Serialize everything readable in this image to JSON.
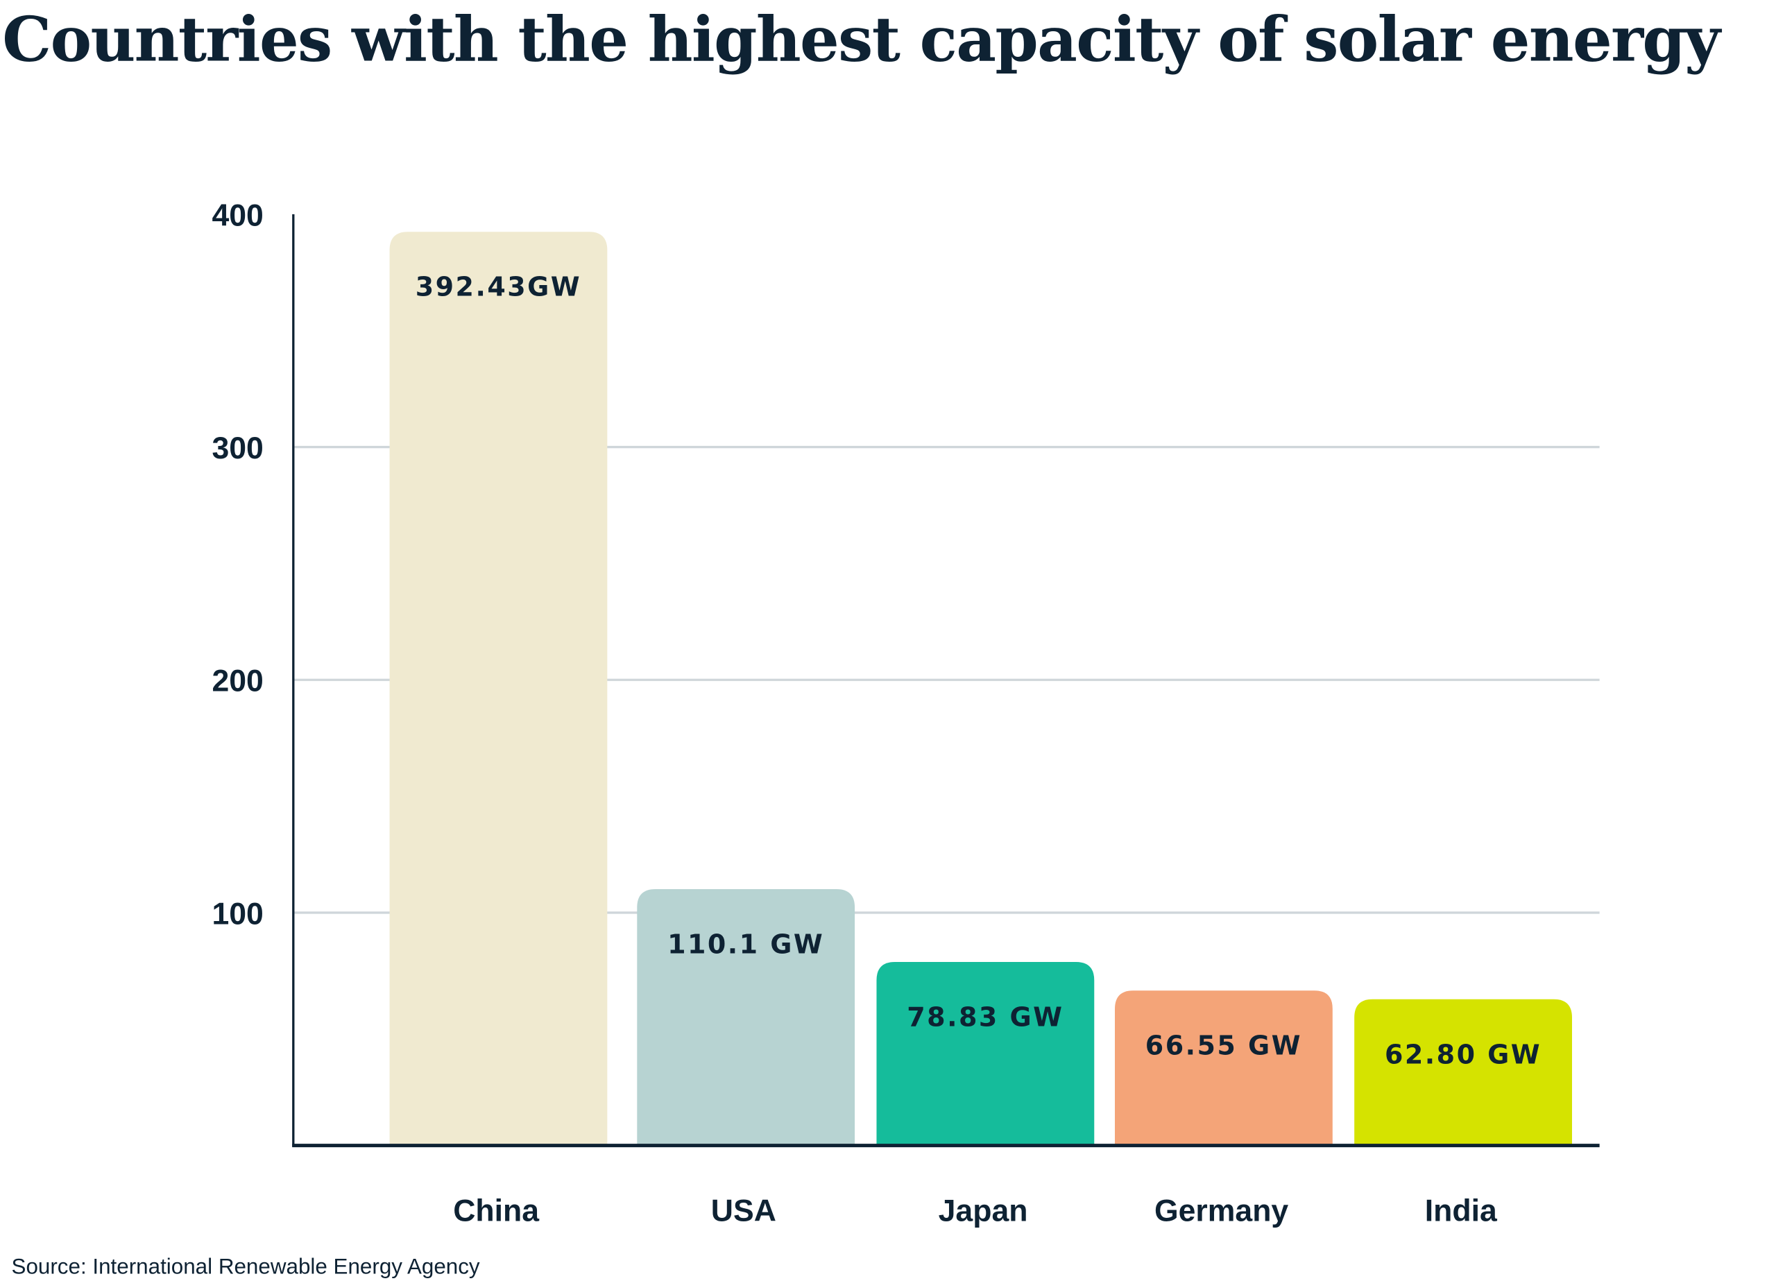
{
  "chart_data": {
    "type": "bar",
    "title": "Countries with the highest capacity of solar energy",
    "categories": [
      "China",
      "USA",
      "Japan",
      "Germany",
      "India"
    ],
    "values": [
      392.43,
      110.1,
      78.83,
      66.55,
      62.8
    ],
    "data_labels": [
      "392.43GW",
      "110.1 GW",
      "78.83 GW",
      "66.55 GW",
      "62.80 GW"
    ],
    "colors": [
      "#f0ead0",
      "#b7d3d2",
      "#15bc9b",
      "#f4a478",
      "#d5e300"
    ],
    "ylim": [
      0,
      400
    ],
    "yticks": [
      100,
      200,
      300,
      400
    ],
    "grid": true,
    "xlabel": "",
    "ylabel": "",
    "source": "Source: International Renewable Energy Agency"
  }
}
